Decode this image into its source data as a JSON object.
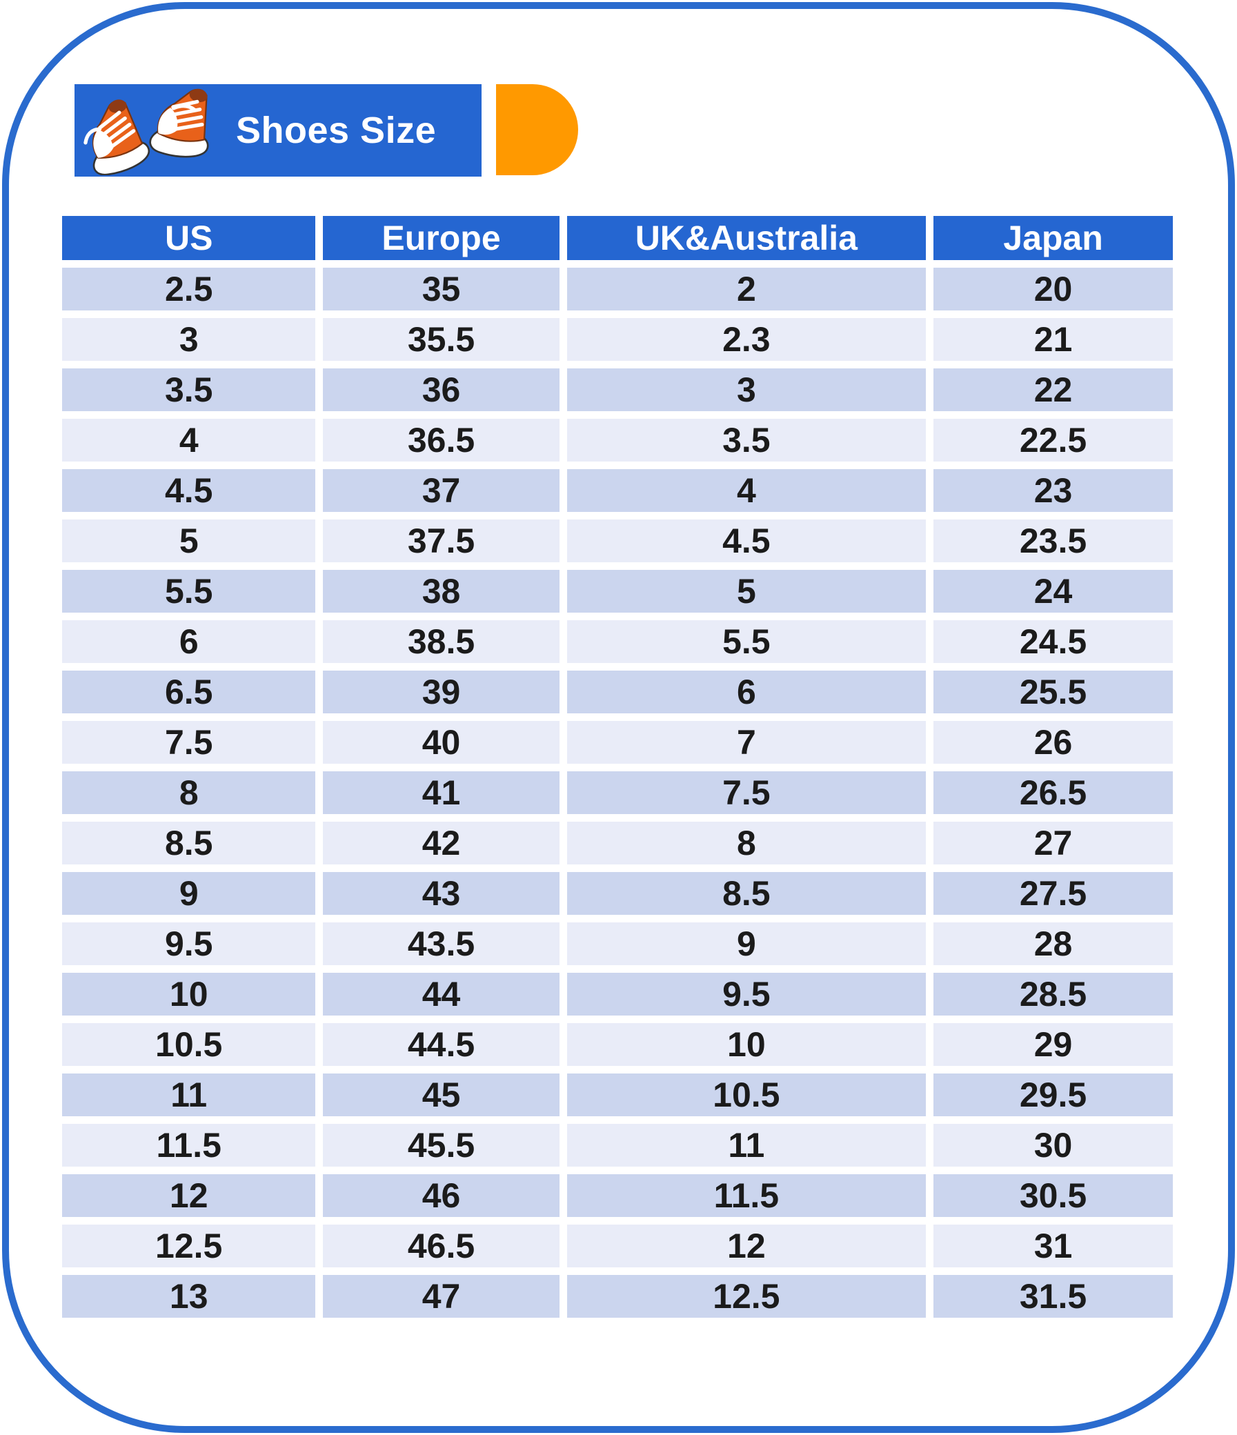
{
  "banner": {
    "title": "Shoes Size"
  },
  "icons": {
    "banner_icon": "sneakers-icon"
  },
  "colors": {
    "primary_blue": "#2566D1",
    "border_blue": "#2A6BCE",
    "accent_orange": "#FF9900",
    "row_dark": "#CBD5EE",
    "row_light": "#E9ECF8",
    "header_text": "#FFFFFF",
    "cell_text": "#1B1B1B"
  },
  "chart_data": {
    "type": "table",
    "title": "Shoes Size",
    "columns": [
      "US",
      "Europe",
      "UK&Australia",
      "Japan"
    ],
    "rows": [
      [
        "2.5",
        "35",
        "2",
        "20"
      ],
      [
        "3",
        "35.5",
        "2.3",
        "21"
      ],
      [
        "3.5",
        "36",
        "3",
        "22"
      ],
      [
        "4",
        "36.5",
        "3.5",
        "22.5"
      ],
      [
        "4.5",
        "37",
        "4",
        "23"
      ],
      [
        "5",
        "37.5",
        "4.5",
        "23.5"
      ],
      [
        "5.5",
        "38",
        "5",
        "24"
      ],
      [
        "6",
        "38.5",
        "5.5",
        "24.5"
      ],
      [
        "6.5",
        "39",
        "6",
        "25.5"
      ],
      [
        "7.5",
        "40",
        "7",
        "26"
      ],
      [
        "8",
        "41",
        "7.5",
        "26.5"
      ],
      [
        "8.5",
        "42",
        "8",
        "27"
      ],
      [
        "9",
        "43",
        "8.5",
        "27.5"
      ],
      [
        "9.5",
        "43.5",
        "9",
        "28"
      ],
      [
        "10",
        "44",
        "9.5",
        "28.5"
      ],
      [
        "10.5",
        "44.5",
        "10",
        "29"
      ],
      [
        "11",
        "45",
        "10.5",
        "29.5"
      ],
      [
        "11.5",
        "45.5",
        "11",
        "30"
      ],
      [
        "12",
        "46",
        "11.5",
        "30.5"
      ],
      [
        "12.5",
        "46.5",
        "12",
        "31"
      ],
      [
        "13",
        "47",
        "12.5",
        "31.5"
      ]
    ],
    "layout": {
      "striped_rows": true,
      "header_position": "top",
      "grid": "white-gaps"
    }
  }
}
